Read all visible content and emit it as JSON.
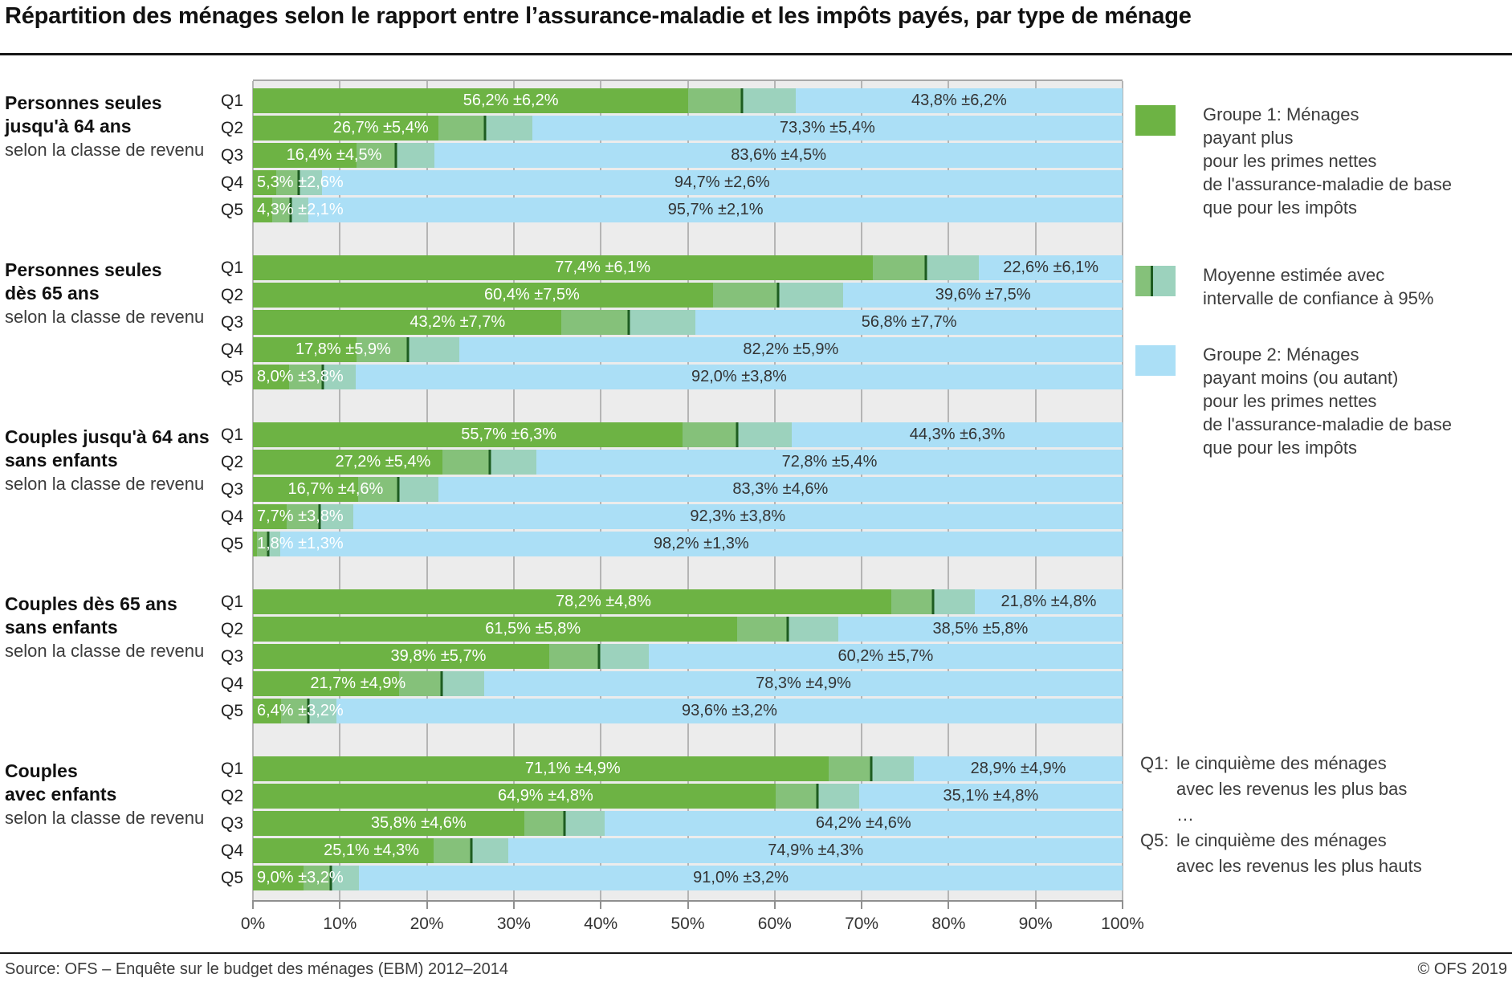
{
  "title": "Répartition des ménages selon le rapport entre l’assurance-maladie et les impôts payés, par type de ménage",
  "source": "Source: OFS – Enquête sur le budget des ménages (EBM) 2012–2014",
  "copyright": "© OFS 2019",
  "colors": {
    "group1_green": "#6db344",
    "ci_over_green": "#85c17a",
    "ci_over_blue": "#9cd2bd",
    "mean_line_dark_green": "#1d5c20",
    "group2_blue": "#abdff6",
    "plot_background": "#ececec",
    "gridline_gray": "#b5b5b5"
  },
  "legend": {
    "items": [
      {
        "swatch": "group1",
        "lines": [
          "Groupe 1: Ménages",
          "payant plus",
          "pour les primes nettes",
          "de l'assurance-maladie de base",
          "que pour les impôts"
        ]
      },
      {
        "swatch": "ci",
        "lines": [
          "Moyenne estimée avec",
          "intervalle de confiance à 95%"
        ]
      },
      {
        "swatch": "group2",
        "lines": [
          "Groupe 2: Ménages",
          "payant moins (ou autant)",
          "pour les primes nettes",
          "de l'assurance-maladie de base",
          "que pour les impôts"
        ]
      }
    ]
  },
  "note": {
    "rows": [
      {
        "prefix": "Q1:",
        "text": "le cinquième des ménages"
      },
      {
        "prefix": "",
        "text": "avec les revenus les plus bas"
      },
      {
        "prefix": "",
        "text": "…"
      },
      {
        "prefix": "Q5:",
        "text": "le cinquième des ménages"
      },
      {
        "prefix": "",
        "text": "avec les revenus les plus hauts"
      }
    ]
  },
  "chart_data": {
    "type": "bar",
    "stacked": true,
    "orientation": "horizontal",
    "unit": "%",
    "xlim": [
      0,
      100
    ],
    "x_ticks": [
      "0%",
      "10%",
      "20%",
      "30%",
      "40%",
      "50%",
      "60%",
      "70%",
      "80%",
      "90%",
      "100%"
    ],
    "series_names": [
      "Groupe 1: Ménages payant plus pour les primes nettes de l'assurance-maladie de base que pour les impôts",
      "Moyenne estimée avec intervalle de confiance à 95%",
      "Groupe 2: Ménages payant moins (ou autant) pour les primes nettes de l'assurance-maladie de base que pour les impôts"
    ],
    "groups": [
      {
        "label_lines": [
          "Personnes seules",
          "jusqu'à 64 ans"
        ],
        "sublabel": "selon la classe de revenu",
        "rows": [
          {
            "quintile": "Q1",
            "group1_pct": 56.2,
            "ci_pct": 6.2,
            "group2_pct": 43.8,
            "group1_label": "56,2% ±6,2%",
            "group2_label": "43,8% ±6,2%"
          },
          {
            "quintile": "Q2",
            "group1_pct": 26.7,
            "ci_pct": 5.4,
            "group2_pct": 73.3,
            "group1_label": "26,7% ±5,4%",
            "group2_label": "73,3% ±5,4%"
          },
          {
            "quintile": "Q3",
            "group1_pct": 16.4,
            "ci_pct": 4.5,
            "group2_pct": 83.6,
            "group1_label": "16,4% ±4,5%",
            "group2_label": "83,6% ±4,5%"
          },
          {
            "quintile": "Q4",
            "group1_pct": 5.3,
            "ci_pct": 2.6,
            "group2_pct": 94.7,
            "group1_label": "5,3% ±2,6%",
            "group2_label": "94,7% ±2,6%"
          },
          {
            "quintile": "Q5",
            "group1_pct": 4.3,
            "ci_pct": 2.1,
            "group2_pct": 95.7,
            "group1_label": "4,3% ±2,1%",
            "group2_label": "95,7% ±2,1%"
          }
        ]
      },
      {
        "label_lines": [
          "Personnes seules",
          "dès 65 ans"
        ],
        "sublabel": "selon la classe de revenu",
        "rows": [
          {
            "quintile": "Q1",
            "group1_pct": 77.4,
            "ci_pct": 6.1,
            "group2_pct": 22.6,
            "group1_label": "77,4% ±6,1%",
            "group2_label": "22,6% ±6,1%"
          },
          {
            "quintile": "Q2",
            "group1_pct": 60.4,
            "ci_pct": 7.5,
            "group2_pct": 39.6,
            "group1_label": "60,4% ±7,5%",
            "group2_label": "39,6% ±7,5%"
          },
          {
            "quintile": "Q3",
            "group1_pct": 43.2,
            "ci_pct": 7.7,
            "group2_pct": 56.8,
            "group1_label": "43,2% ±7,7%",
            "group2_label": "56,8% ±7,7%"
          },
          {
            "quintile": "Q4",
            "group1_pct": 17.8,
            "ci_pct": 5.9,
            "group2_pct": 82.2,
            "group1_label": "17,8% ±5,9%",
            "group2_label": "82,2% ±5,9%"
          },
          {
            "quintile": "Q5",
            "group1_pct": 8.0,
            "ci_pct": 3.8,
            "group2_pct": 92.0,
            "group1_label": "8,0% ±3,8%",
            "group2_label": "92,0% ±3,8%"
          }
        ]
      },
      {
        "label_lines": [
          "Couples jusqu'à 64 ans",
          "sans enfants"
        ],
        "sublabel": "selon la classe de revenu",
        "rows": [
          {
            "quintile": "Q1",
            "group1_pct": 55.7,
            "ci_pct": 6.3,
            "group2_pct": 44.3,
            "group1_label": "55,7% ±6,3%",
            "group2_label": "44,3% ±6,3%"
          },
          {
            "quintile": "Q2",
            "group1_pct": 27.2,
            "ci_pct": 5.4,
            "group2_pct": 72.8,
            "group1_label": "27,2% ±5,4%",
            "group2_label": "72,8% ±5,4%"
          },
          {
            "quintile": "Q3",
            "group1_pct": 16.7,
            "ci_pct": 4.6,
            "group2_pct": 83.3,
            "group1_label": "16,7% ±4,6%",
            "group2_label": "83,3% ±4,6%"
          },
          {
            "quintile": "Q4",
            "group1_pct": 7.7,
            "ci_pct": 3.8,
            "group2_pct": 92.3,
            "group1_label": "7,7% ±3,8%",
            "group2_label": "92,3% ±3,8%"
          },
          {
            "quintile": "Q5",
            "group1_pct": 1.8,
            "ci_pct": 1.3,
            "group2_pct": 98.2,
            "group1_label": "1,8% ±1,3%",
            "group2_label": "98,2% ±1,3%"
          }
        ]
      },
      {
        "label_lines": [
          "Couples dès 65 ans",
          "sans enfants"
        ],
        "sublabel": "selon la classe de revenu",
        "rows": [
          {
            "quintile": "Q1",
            "group1_pct": 78.2,
            "ci_pct": 4.8,
            "group2_pct": 21.8,
            "group1_label": "78,2% ±4,8%",
            "group2_label": "21,8% ±4,8%"
          },
          {
            "quintile": "Q2",
            "group1_pct": 61.5,
            "ci_pct": 5.8,
            "group2_pct": 38.5,
            "group1_label": "61,5% ±5,8%",
            "group2_label": "38,5% ±5,8%"
          },
          {
            "quintile": "Q3",
            "group1_pct": 39.8,
            "ci_pct": 5.7,
            "group2_pct": 60.2,
            "group1_label": "39,8% ±5,7%",
            "group2_label": "60,2% ±5,7%"
          },
          {
            "quintile": "Q4",
            "group1_pct": 21.7,
            "ci_pct": 4.9,
            "group2_pct": 78.3,
            "group1_label": "21,7% ±4,9%",
            "group2_label": "78,3% ±4,9%"
          },
          {
            "quintile": "Q5",
            "group1_pct": 6.4,
            "ci_pct": 3.2,
            "group2_pct": 93.6,
            "group1_label": "6,4% ±3,2%",
            "group2_label": "93,6% ±3,2%"
          }
        ]
      },
      {
        "label_lines": [
          "Couples",
          "avec enfants"
        ],
        "sublabel": "selon la classe de revenu",
        "rows": [
          {
            "quintile": "Q1",
            "group1_pct": 71.1,
            "ci_pct": 4.9,
            "group2_pct": 28.9,
            "group1_label": "71,1% ±4,9%",
            "group2_label": "28,9% ±4,9%"
          },
          {
            "quintile": "Q2",
            "group1_pct": 64.9,
            "ci_pct": 4.8,
            "group2_pct": 35.1,
            "group1_label": "64,9% ±4,8%",
            "group2_label": "35,1% ±4,8%"
          },
          {
            "quintile": "Q3",
            "group1_pct": 35.8,
            "ci_pct": 4.6,
            "group2_pct": 64.2,
            "group1_label": "35,8% ±4,6%",
            "group2_label": "64,2% ±4,6%"
          },
          {
            "quintile": "Q4",
            "group1_pct": 25.1,
            "ci_pct": 4.3,
            "group2_pct": 74.9,
            "group1_label": "25,1% ±4,3%",
            "group2_label": "74,9% ±4,3%"
          },
          {
            "quintile": "Q5",
            "group1_pct": 9.0,
            "ci_pct": 3.2,
            "group2_pct": 91.0,
            "group1_label": "9,0% ±3,2%",
            "group2_label": "91,0% ±3,2%"
          }
        ]
      }
    ]
  }
}
